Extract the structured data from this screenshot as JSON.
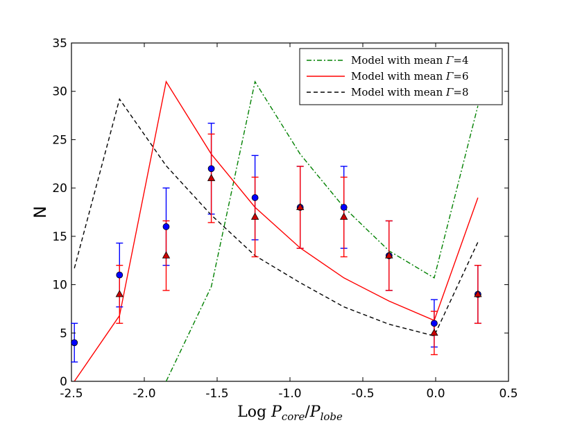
{
  "chart_data": {
    "type": "line",
    "title": "",
    "ylabel": "N",
    "xlabel": {
      "prefix": "Log ",
      "p1": "P",
      "sub1": "core",
      "slash": "/",
      "p2": "P",
      "sub2": "lobe"
    },
    "xlim": [
      -2.5,
      0.5
    ],
    "ylim": [
      0,
      35
    ],
    "x_ticks": [
      -2.5,
      -2.0,
      -1.5,
      -1.0,
      -0.5,
      0.0,
      0.5
    ],
    "x_tick_labels": [
      "-2.5",
      "-2.0",
      "-1.5",
      "-1.0",
      "-0.5",
      "0.0",
      "0.5"
    ],
    "y_ticks": [
      0,
      5,
      10,
      15,
      20,
      25,
      30,
      35
    ],
    "y_tick_labels": [
      "0",
      "5",
      "10",
      "15",
      "20",
      "25",
      "30",
      "35"
    ],
    "grid": false,
    "legend_position": "top-right",
    "colors": {
      "gamma4": "#008000",
      "gamma6": "#ff0000",
      "gamma8": "#000000",
      "blue_points": "#0000ff",
      "red_points": "#ff0000",
      "triangle_fill": "#cc0000"
    },
    "series": [
      {
        "id": "gamma4",
        "name": "Model with mean Γ=4",
        "label_prefix": "Model with mean ",
        "label_symbol": "Γ",
        "label_suffix": "=4",
        "style": "dashdot",
        "x": [
          -1.85,
          -1.54,
          -1.24,
          -0.93,
          -0.63,
          -0.32,
          -0.01,
          0.29
        ],
        "y": [
          0,
          9.8,
          31,
          23.5,
          18,
          13.5,
          10.7,
          28.5
        ]
      },
      {
        "id": "gamma6",
        "name": "Model with mean Γ=6",
        "label_prefix": "Model with mean ",
        "label_symbol": "Γ",
        "label_suffix": "=6",
        "style": "solid",
        "x": [
          -2.48,
          -2.17,
          -1.85,
          -1.54,
          -1.24,
          -0.93,
          -0.63,
          -0.32,
          -0.01,
          0.29
        ],
        "y": [
          0,
          6.8,
          31,
          23.5,
          18,
          13.8,
          10.7,
          8.3,
          6.3,
          19
        ]
      },
      {
        "id": "gamma8",
        "name": "Model with mean Γ=8",
        "label_prefix": "Model with mean ",
        "label_symbol": "Γ",
        "label_suffix": "=8",
        "style": "dashed",
        "x": [
          -2.48,
          -2.17,
          -1.85,
          -1.54,
          -1.24,
          -0.93,
          -0.63,
          -0.32,
          -0.01,
          0.29
        ],
        "y": [
          11.7,
          29.2,
          22.3,
          17.2,
          13,
          10.2,
          7.7,
          5.9,
          4.7,
          14.4
        ]
      }
    ],
    "points": [
      {
        "id": "circles",
        "marker": "circle",
        "x": [
          -2.48,
          -2.17,
          -1.85,
          -1.54,
          -1.24,
          -0.93,
          -0.63,
          -0.32,
          -0.01,
          0.29
        ],
        "y": [
          4,
          11,
          16,
          22,
          19,
          18,
          18,
          13,
          6,
          9
        ],
        "err": [
          2,
          3.3,
          4,
          4.7,
          4.36,
          4.24,
          4.24,
          3.6,
          2.45,
          3
        ]
      },
      {
        "id": "triangles",
        "marker": "triangle",
        "x": [
          -2.17,
          -1.85,
          -1.54,
          -1.24,
          -0.93,
          -0.63,
          -0.32,
          -0.01,
          0.29
        ],
        "y": [
          9,
          13,
          21,
          17,
          18,
          17,
          13,
          5,
          9
        ],
        "err": [
          3,
          3.6,
          4.58,
          4.12,
          4.24,
          4.12,
          3.6,
          2.24,
          3
        ]
      }
    ]
  }
}
